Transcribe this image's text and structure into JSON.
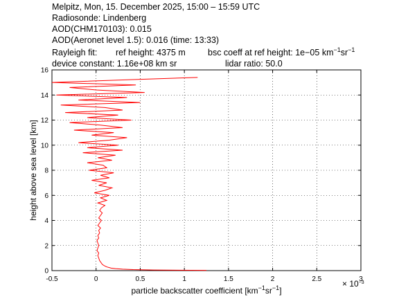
{
  "chart_data": {
    "type": "line",
    "header": [
      "Melpitz, Mon, 15. December 2025, 15:00 – 15:59 UTC",
      "Radiosonde: Lindenberg",
      "AOD(CHM170103): 0.015",
      "AOD(Aeronet level 1.5): 0.016   (time: 13:33)"
    ],
    "rayleigh": {
      "label": "Rayleigh fit:",
      "ref_height": "ref height: 4375 m",
      "bsc": "bsc coeff at ref height: 1e−05 km",
      "bsc_exp1": "−1",
      "bsc_unit2": "sr",
      "bsc_exp2": "−1"
    },
    "device_constant": "device constant: 1.16e+08 km sr",
    "lidar_ratio": "lidar ratio: 50.0",
    "xlabel": {
      "text": "particle backscatter coefficient [km",
      "exp1": "−1",
      "unit2": "sr",
      "exp2": "−1",
      "close": "]"
    },
    "ylabel": "height above sea level [km]",
    "x_multiplier": {
      "base": "× 10",
      "exp": "−3"
    },
    "heights": [
      0.02,
      0.05,
      0.08,
      0.12,
      0.16,
      0.2,
      0.3,
      0.4,
      0.5,
      0.6,
      0.8,
      1.0,
      1.2,
      1.4,
      1.6,
      1.8,
      2.0,
      2.2,
      2.4,
      2.6,
      2.8,
      3.0,
      3.2,
      3.4,
      3.6,
      3.8,
      4.0,
      4.2,
      4.4,
      4.6,
      4.8,
      5.0,
      5.2,
      5.4,
      5.6,
      5.8,
      6.0,
      6.2,
      6.4,
      6.6,
      6.8,
      7.0,
      7.2,
      7.4,
      7.6,
      7.8,
      8.0,
      8.2,
      8.4,
      8.6,
      8.8,
      9.0,
      9.2,
      9.4,
      9.6,
      9.8,
      10.0,
      10.2,
      10.4,
      10.6,
      10.8,
      11.0,
      11.2,
      11.4,
      11.6,
      11.8,
      12.0,
      12.2,
      12.4,
      12.6,
      12.8,
      13.0,
      13.2,
      13.4,
      13.6,
      13.8,
      14.0,
      14.2,
      14.4,
      14.6,
      14.8,
      15.0,
      15.2,
      15.4
    ],
    "series": [
      {
        "color": "#ff0000",
        "values": [
          1.25,
          0.65,
          0.42,
          0.3,
          0.22,
          0.17,
          0.12,
          0.09,
          0.07,
          0.06,
          0.04,
          0.03,
          0.02,
          0.03,
          0.01,
          0.02,
          0.03,
          0.02,
          0.01,
          0.03,
          0.02,
          0.04,
          0.03,
          0.05,
          0.02,
          0.04,
          0.06,
          0.03,
          0.05,
          0.07,
          0.04,
          0.06,
          0.1,
          0.02,
          0.12,
          0.05,
          0.15,
          -0.02,
          0.1,
          0.18,
          0.03,
          0.12,
          -0.05,
          0.15,
          0.05,
          0.2,
          -0.08,
          0.12,
          0.08,
          -0.1,
          0.18,
          0.02,
          0.22,
          -0.15,
          0.3,
          -0.1,
          0.25,
          -0.2,
          0.15,
          0.35,
          -0.05,
          0.2,
          -0.25,
          0.3,
          0.05,
          -0.3,
          0.4,
          -0.1,
          0.25,
          -0.35,
          0.3,
          0.1,
          -0.4,
          0.5,
          -0.2,
          0.35,
          -0.45,
          0.55,
          0.0,
          -0.3,
          0.45,
          -0.5,
          0.3,
          1.15
        ]
      }
    ],
    "xlim": [
      -0.5,
      3
    ],
    "ylim": [
      0,
      16
    ],
    "xticks": [
      -0.5,
      0,
      0.5,
      1,
      1.5,
      2,
      2.5,
      3
    ],
    "yticks": [
      0,
      2,
      4,
      6,
      8,
      10,
      12,
      14,
      16
    ],
    "grid": true
  }
}
